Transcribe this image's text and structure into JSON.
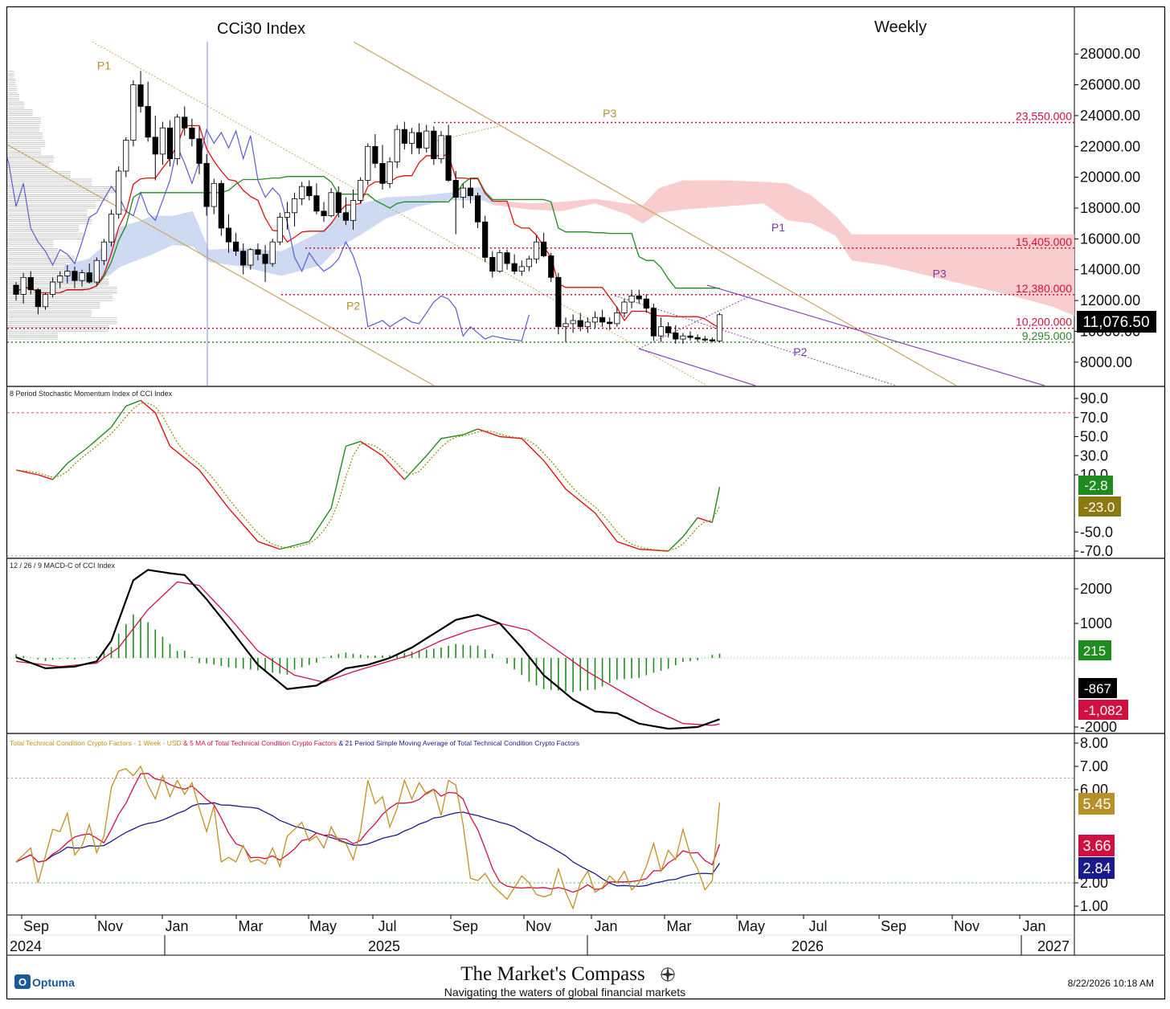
{
  "header": {
    "title": "CCi30 Index",
    "timeframe": "Weekly",
    "last_price": "11,076.50"
  },
  "panes": {
    "stoch_title": "8 Period Stochastic Momentum Index of CCI Index",
    "macd_title": "12 / 26 / 9 MACD-C of CCI Index",
    "tech_title_part1": "Total Technical Condition Crypto Factors - 1 Week - USD",
    "tech_title_part2": " & 5 MA of Total Technical Condition Crypto Factors",
    "tech_title_part3": " & 21 Period Simple Moving Average of Total Technical Condition Crypto Factors"
  },
  "colors": {
    "candle_up_fill": "#ffffff",
    "candle_down_fill": "#000000",
    "tenkan": "#e01010",
    "kijun": "#228b22",
    "chikou": "#5b5bd6",
    "cloud_bull": "#c5d2f0",
    "cloud_bear": "#f8c8c8",
    "channel": "#c8a860",
    "purple": "#8a4ab8",
    "smi_k": "#1e8c1e",
    "smi_d": "#8a8a00",
    "smi_k2": "#e01010",
    "macd": "#000000",
    "macd_signal": "#d01040",
    "macd_hist": "#1e8c1e",
    "tech": "#c09020",
    "tech_ma5": "#d01040",
    "tech_ma21": "#1a1a8c",
    "red_level": "#d0103a",
    "green_level": "#2a8a2a"
  },
  "chart_data": [
    {
      "name": "CCi30 Index",
      "type": "candlestick",
      "ylim": [
        7000,
        29000
      ],
      "y_ticks": [
        "8000.00",
        "10000.00",
        "12000.00",
        "14000.00",
        "16000.00",
        "18000.00",
        "20000.00",
        "22000.00",
        "24000.00",
        "26000.00",
        "28000.00"
      ],
      "y_tick_values": [
        8000,
        10000,
        12000,
        14000,
        16000,
        18000,
        20000,
        22000,
        24000,
        26000,
        28000
      ],
      "x_months": [
        "Sep",
        "Nov",
        "Jan",
        "Mar",
        "May",
        "Jul",
        "Sep",
        "Nov",
        "Jan",
        "Mar",
        "May",
        "Jul",
        "Sep",
        "Nov",
        "Jan"
      ],
      "x_years": [
        "2024",
        "2025",
        "2026",
        "2027"
      ],
      "levels": [
        {
          "label": "23,550.000",
          "value": 23550,
          "color": "#d0103a"
        },
        {
          "label": "15,405.000",
          "value": 15405,
          "color": "#d0103a"
        },
        {
          "label": "12,380.000",
          "value": 12380,
          "color": "#d0103a"
        },
        {
          "label": "10,200.000",
          "value": 10200,
          "color": "#d0103a"
        },
        {
          "label": "9,295.000",
          "value": 9295,
          "color": "#2a8a2a"
        }
      ],
      "pivot_labels": [
        {
          "text": "P1",
          "week": 12,
          "value": 27000,
          "color": "#b8902a"
        },
        {
          "text": "P2",
          "week": 46,
          "value": 11400,
          "color": "#b8902a"
        },
        {
          "text": "P3",
          "week": 81,
          "value": 23900,
          "color": "#b8902a"
        },
        {
          "text": "P1",
          "week": 104,
          "value": 16500,
          "color": "#7a3aa0"
        },
        {
          "text": "P2",
          "week": 107,
          "value": 8400,
          "color": "#7a3aa0"
        },
        {
          "text": "P3",
          "week": 126,
          "value": 13500,
          "color": "#7a3aa0"
        }
      ],
      "candles": [
        [
          13000,
          13200,
          12000,
          12400
        ],
        [
          12400,
          13800,
          11800,
          13500
        ],
        [
          13500,
          13900,
          12400,
          12700
        ],
        [
          12700,
          12800,
          11100,
          11600
        ],
        [
          11600,
          12500,
          11400,
          12400
        ],
        [
          12400,
          13500,
          12200,
          13200
        ],
        [
          13200,
          13900,
          12800,
          13600
        ],
        [
          13600,
          14300,
          13100,
          13900
        ],
        [
          13900,
          14200,
          12800,
          13300
        ],
        [
          13300,
          14000,
          12900,
          13800
        ],
        [
          13800,
          14400,
          13100,
          13200
        ],
        [
          13200,
          14800,
          13000,
          14600
        ],
        [
          14600,
          16000,
          14300,
          15800
        ],
        [
          15800,
          17900,
          15500,
          17600
        ],
        [
          17600,
          20700,
          17300,
          20400
        ],
        [
          20400,
          22600,
          20000,
          22400
        ],
        [
          22400,
          26300,
          22000,
          26000
        ],
        [
          26000,
          26900,
          24200,
          24600
        ],
        [
          24600,
          26200,
          22300,
          22600
        ],
        [
          22600,
          24000,
          19800,
          21500
        ],
        [
          21500,
          23600,
          20800,
          23200
        ],
        [
          23200,
          23700,
          20700,
          21200
        ],
        [
          21200,
          24100,
          20800,
          23900
        ],
        [
          23900,
          24600,
          22700,
          23200
        ],
        [
          23200,
          23800,
          22000,
          22500
        ],
        [
          22500,
          23300,
          20200,
          20900
        ],
        [
          20900,
          21500,
          17500,
          18100
        ],
        [
          18100,
          19900,
          17600,
          19600
        ],
        [
          19600,
          19800,
          16200,
          16700
        ],
        [
          16700,
          17600,
          15100,
          15800
        ],
        [
          15800,
          16400,
          14900,
          15200
        ],
        [
          15200,
          15700,
          13700,
          14300
        ],
        [
          14300,
          15400,
          14000,
          15300
        ],
        [
          15300,
          15700,
          14600,
          15000
        ],
        [
          15000,
          15600,
          13200,
          14400
        ],
        [
          14400,
          16000,
          14200,
          15800
        ],
        [
          15800,
          17700,
          15600,
          17400
        ],
        [
          17400,
          18400,
          16600,
          17700
        ],
        [
          17700,
          19000,
          16800,
          18600
        ],
        [
          18600,
          19700,
          18200,
          19400
        ],
        [
          19400,
          19800,
          18500,
          18800
        ],
        [
          18800,
          19600,
          17600,
          17800
        ],
        [
          17800,
          18400,
          17100,
          17500
        ],
        [
          17500,
          19300,
          17400,
          19000
        ],
        [
          19000,
          19400,
          17400,
          17700
        ],
        [
          17700,
          18700,
          16900,
          17200
        ],
        [
          17200,
          19200,
          16600,
          18500
        ],
        [
          18500,
          20000,
          18300,
          19800
        ],
        [
          19800,
          22200,
          19500,
          22000
        ],
        [
          22000,
          22800,
          20600,
          20900
        ],
        [
          20900,
          22100,
          19200,
          19600
        ],
        [
          19600,
          21300,
          19300,
          21000
        ],
        [
          21000,
          23400,
          20600,
          23100
        ],
        [
          23100,
          23600,
          21800,
          22200
        ],
        [
          22200,
          23200,
          21500,
          22900
        ],
        [
          22900,
          23500,
          21500,
          21900
        ],
        [
          21900,
          23400,
          21600,
          23000
        ],
        [
          23000,
          23300,
          20800,
          21200
        ],
        [
          21200,
          23000,
          20900,
          22700
        ],
        [
          22700,
          23400,
          19700,
          19800
        ],
        [
          19800,
          20400,
          16300,
          18700
        ],
        [
          18700,
          19600,
          18000,
          19300
        ],
        [
          19300,
          19900,
          18300,
          18800
        ],
        [
          18800,
          19000,
          16700,
          17100
        ],
        [
          17100,
          17500,
          14500,
          14800
        ],
        [
          14800,
          15200,
          13500,
          13900
        ],
        [
          13900,
          15300,
          13800,
          15100
        ],
        [
          15100,
          15300,
          14000,
          14400
        ],
        [
          14400,
          15000,
          13700,
          13900
        ],
        [
          13900,
          14600,
          13600,
          14200
        ],
        [
          14200,
          14900,
          13900,
          14700
        ],
        [
          14700,
          16200,
          14400,
          15800
        ],
        [
          15800,
          16400,
          14800,
          14900
        ],
        [
          14900,
          15100,
          13200,
          13500
        ],
        [
          13500,
          13800,
          9800,
          10300
        ],
        [
          10300,
          10900,
          9300,
          10500
        ],
        [
          10500,
          11100,
          9900,
          10700
        ],
        [
          10700,
          11200,
          10000,
          10300
        ],
        [
          10300,
          10900,
          9900,
          10600
        ],
        [
          10600,
          11300,
          10200,
          10900
        ],
        [
          10900,
          11400,
          10300,
          10600
        ],
        [
          10600,
          10900,
          10100,
          10500
        ],
        [
          10500,
          11600,
          10300,
          11200
        ],
        [
          11200,
          12100,
          10900,
          11900
        ],
        [
          11900,
          12700,
          11500,
          12300
        ],
        [
          12300,
          12700,
          11800,
          12100
        ],
        [
          12100,
          12400,
          11200,
          11500
        ],
        [
          11500,
          11800,
          9400,
          9700
        ],
        [
          9700,
          10900,
          9300,
          10300
        ],
        [
          10300,
          10600,
          9600,
          9900
        ],
        [
          9900,
          10400,
          9200,
          9500
        ],
        [
          9500,
          9900,
          9200,
          9700
        ],
        [
          9700,
          10000,
          9400,
          9600
        ],
        [
          9600,
          9800,
          9300,
          9500
        ],
        [
          9500,
          9700,
          9300,
          9450
        ],
        [
          9450,
          9600,
          9300,
          9380
        ],
        [
          9380,
          11200,
          9300,
          11076
        ]
      ]
    },
    {
      "name": "8 Period Stochastic Momentum Index of CCI Index",
      "type": "line",
      "ylim": [
        -75,
        95
      ],
      "y_ticks": [
        "90.0",
        "70.0",
        "50.0",
        "30.0",
        "10.0",
        "-50.0",
        "-70.0"
      ],
      "y_tick_values": [
        90,
        70,
        50,
        30,
        10,
        -50,
        -70
      ],
      "reference_line": 75,
      "last_values": {
        "k": "-2.8",
        "d": "-23.0"
      }
    },
    {
      "name": "12 / 26 / 9 MACD-C of CCI Index",
      "type": "line",
      "ylim": [
        -2200,
        2700
      ],
      "y_ticks": [
        "2000",
        "1000",
        "-2000"
      ],
      "y_tick_values": [
        2000,
        1000,
        -2000
      ],
      "last_values": {
        "hist": "215",
        "macd": "-867",
        "signal": "-1,082"
      }
    },
    {
      "name": "Total Technical Condition Crypto Factors",
      "type": "line",
      "ylim": [
        0.6,
        8.2
      ],
      "y_ticks": [
        "8.00",
        "7.00",
        "6.00",
        "2.00",
        "1.00"
      ],
      "y_tick_values": [
        8,
        7,
        6,
        2,
        1
      ],
      "reference_lines": [
        6.5,
        2.0
      ],
      "last_values": {
        "tech": "5.45",
        "ma5": "3.66",
        "ma21": "2.84"
      }
    }
  ],
  "footer": {
    "vendor": "Optuma",
    "brand_title": "The Market's Compass",
    "brand_tagline": "Navigating the waters of global financial markets",
    "timestamp": "8/22/2026 10:18 AM"
  }
}
